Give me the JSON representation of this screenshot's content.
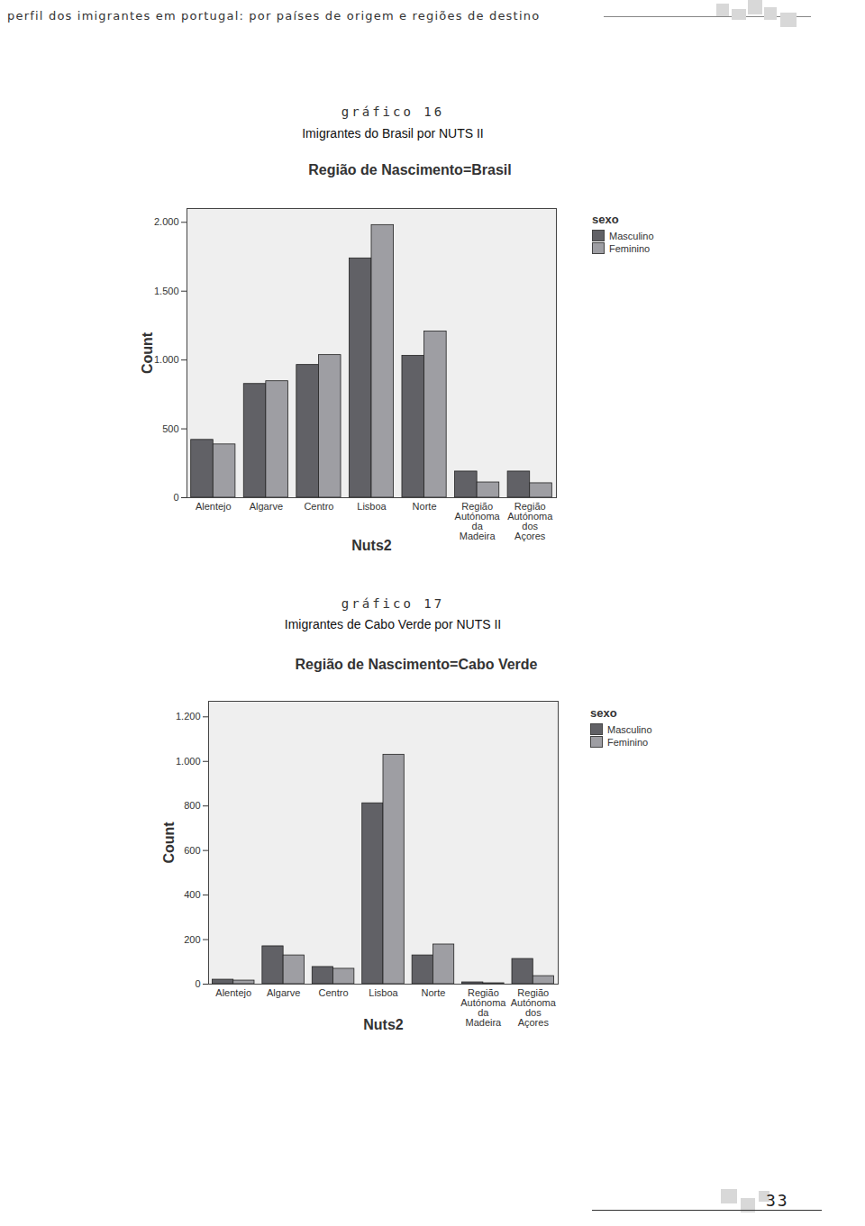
{
  "page": {
    "header": "perfil dos imigrantes em portugal: por países de origem e regiões de destino",
    "page_number": "33"
  },
  "chart_data": [
    {
      "type": "bar",
      "figure_number": "gráfico 16",
      "caption": "Imigrantes do Brasil por NUTS II",
      "title": "Região de Nascimento=Brasil",
      "x_label": "Nuts2",
      "y_label": "Count",
      "categories": [
        "Alentejo",
        "Algarve",
        "Centro",
        "Lisboa",
        "Norte",
        "Região Autónoma da Madeira",
        "Região Autónoma dos Açores"
      ],
      "series": [
        {
          "name": "Masculino",
          "color": "#616166",
          "values": [
            420,
            826,
            964,
            1738,
            1030,
            190,
            190
          ]
        },
        {
          "name": "Feminino",
          "color": "#9e9ea3",
          "values": [
            387,
            846,
            1036,
            1980,
            1207,
            111,
            105
          ]
        }
      ],
      "ylim": [
        0,
        2100
      ],
      "yticks": [
        0,
        500,
        {
          "value": 1000,
          "label": "1.000"
        },
        {
          "value": 1500,
          "label": "1.500"
        },
        {
          "value": 2000,
          "label": "2.000"
        }
      ],
      "grid": false,
      "legend": "right",
      "legend_title": "sexo"
    },
    {
      "type": "bar",
      "figure_number": "gráfico 17",
      "caption": "Imigrantes de Cabo Verde por NUTS II",
      "title": "Região de Nascimento=Cabo Verde",
      "x_label": "Nuts2",
      "y_label": "Count",
      "categories": [
        "Alentejo",
        "Algarve",
        "Centro",
        "Lisboa",
        "Norte",
        "Região Autónoma da Madeira",
        "Região Autónoma dos Açores"
      ],
      "series": [
        {
          "name": "Masculino",
          "color": "#616166",
          "values": [
            20,
            170,
            77,
            812,
            129,
            8,
            113
          ]
        },
        {
          "name": "Feminino",
          "color": "#9e9ea3",
          "values": [
            16,
            129,
            69,
            1030,
            178,
            4,
            36
          ]
        }
      ],
      "ylim": [
        0,
        1270
      ],
      "yticks": [
        0,
        200,
        400,
        600,
        800,
        {
          "value": 1000,
          "label": "1.000"
        },
        {
          "value": 1200,
          "label": "1.200"
        }
      ],
      "grid": false,
      "legend": "right",
      "legend_title": "sexo"
    }
  ]
}
